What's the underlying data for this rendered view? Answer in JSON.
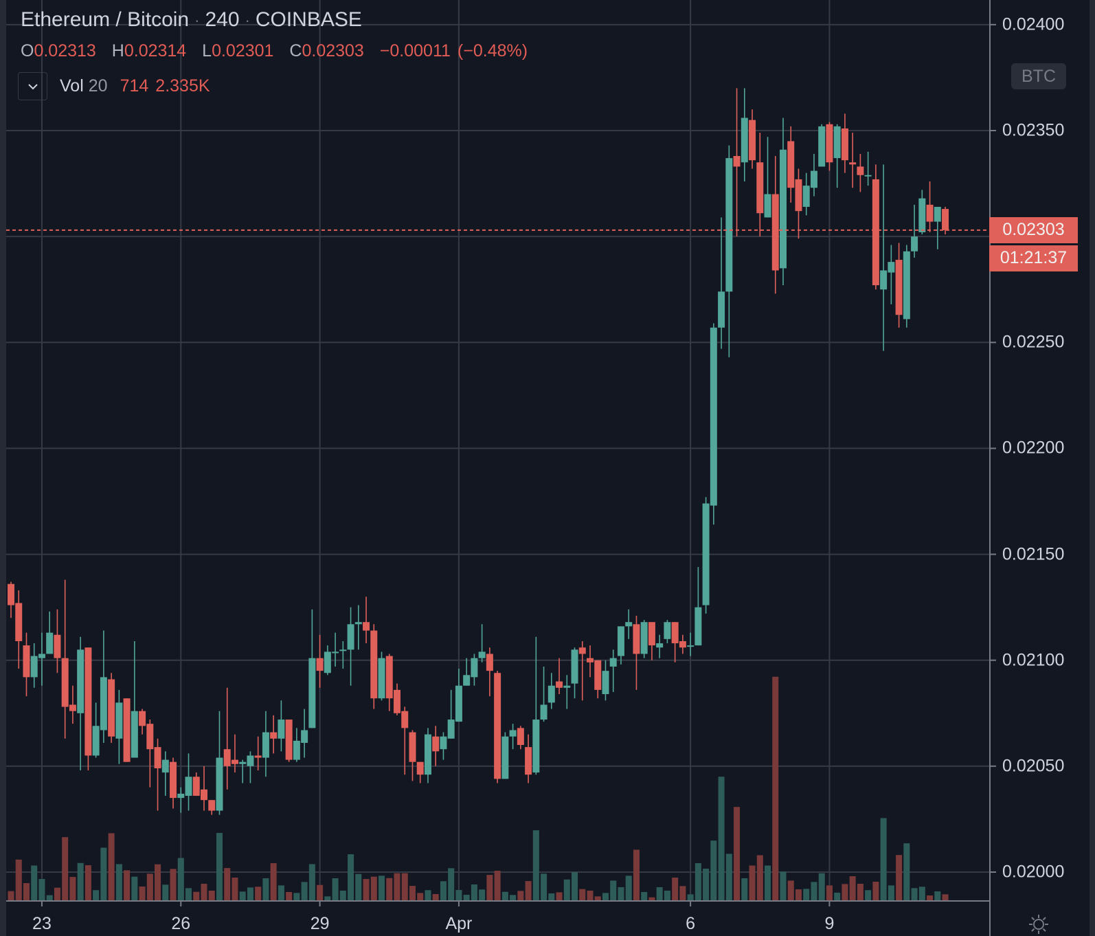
{
  "legend": {
    "symbol": "Ethereum / Bitcoin",
    "interval": "240",
    "exchange": "COINBASE",
    "separator": "·",
    "ohlc": {
      "o_key": "O",
      "o": "0.02313",
      "h_key": "H",
      "h": "0.02314",
      "l_key": "L",
      "l": "0.02301",
      "c_key": "C",
      "c": "0.02303",
      "change": "−0.00011",
      "change_pct": "(−0.48%)"
    },
    "volume": {
      "name": "Vol",
      "length": "20",
      "value": "714",
      "ma": "2.335K"
    }
  },
  "price_axis": {
    "currency_badge": "BTC",
    "current_price": "0.02303",
    "countdown": "01:21:37"
  },
  "colors": {
    "background": "#131722",
    "up": "#53a69a",
    "down": "#e0605a",
    "volume_up": "#2e5d59",
    "volume_down": "#7a3a3a",
    "grid": "#363a45",
    "axis": "#787b86"
  },
  "icons": {
    "collapse": "chevron-down-icon",
    "settings": "settings-gear-icon"
  },
  "chart_data": {
    "type": "candlestick",
    "title": "Ethereum / Bitcoin · 240 · COINBASE",
    "ylabel": "BTC",
    "ylim": [
      0.01986,
      0.02412
    ],
    "grid": true,
    "y_gridlines": [
      0.024,
      0.0235,
      0.023,
      0.0225,
      0.022,
      0.0215,
      0.021,
      0.0205,
      0.02
    ],
    "y_ticks": [
      {
        "value": 0.024,
        "label": "0.02400"
      },
      {
        "value": 0.0235,
        "label": "0.02350"
      },
      {
        "value": 0.0225,
        "label": "0.02250"
      },
      {
        "value": 0.022,
        "label": "0.02200"
      },
      {
        "value": 0.0215,
        "label": "0.02150"
      },
      {
        "value": 0.021,
        "label": "0.02100"
      },
      {
        "value": 0.0205,
        "label": "0.02050"
      },
      {
        "value": 0.02,
        "label": "0.02000"
      }
    ],
    "x_ticks": [
      {
        "index": 4,
        "label": "23"
      },
      {
        "index": 22,
        "label": "26"
      },
      {
        "index": 40,
        "label": "29"
      },
      {
        "index": 58,
        "label": "Apr"
      },
      {
        "index": 88,
        "label": "6"
      },
      {
        "index": 106,
        "label": "9"
      }
    ],
    "ohlc_columns": [
      "open",
      "high",
      "low",
      "close"
    ],
    "ohlc": [
      [
        0.02136,
        0.02137,
        0.0212,
        0.02126
      ],
      [
        0.02127,
        0.02133,
        0.02096,
        0.02109
      ],
      [
        0.02107,
        0.02113,
        0.02083,
        0.02092
      ],
      [
        0.02092,
        0.02108,
        0.02087,
        0.02102
      ],
      [
        0.02101,
        0.02113,
        0.02088,
        0.02103
      ],
      [
        0.02103,
        0.02123,
        0.02103,
        0.02113
      ],
      [
        0.02112,
        0.02124,
        0.02094,
        0.02101
      ],
      [
        0.02101,
        0.02138,
        0.02063,
        0.02078
      ],
      [
        0.02079,
        0.02088,
        0.0207,
        0.02076
      ],
      [
        0.02075,
        0.02111,
        0.02048,
        0.02105
      ],
      [
        0.02106,
        0.02106,
        0.02048,
        0.02055
      ],
      [
        0.02055,
        0.0208,
        0.02054,
        0.02069
      ],
      [
        0.02067,
        0.02114,
        0.02061,
        0.02092
      ],
      [
        0.02091,
        0.02094,
        0.02061,
        0.02064
      ],
      [
        0.02063,
        0.02086,
        0.02051,
        0.0208
      ],
      [
        0.02082,
        0.02082,
        0.02052,
        0.02052
      ],
      [
        0.02054,
        0.02109,
        0.02054,
        0.02076
      ],
      [
        0.02076,
        0.02077,
        0.02065,
        0.02069
      ],
      [
        0.0207,
        0.02072,
        0.0204,
        0.02058
      ],
      [
        0.02059,
        0.02063,
        0.02029,
        0.02049
      ],
      [
        0.02047,
        0.02057,
        0.02036,
        0.02053
      ],
      [
        0.02052,
        0.02054,
        0.0203,
        0.02035
      ],
      [
        0.02035,
        0.0204,
        0.02028,
        0.02037
      ],
      [
        0.02036,
        0.02056,
        0.02029,
        0.02045
      ],
      [
        0.02045,
        0.02047,
        0.02036,
        0.02036
      ],
      [
        0.02039,
        0.0205,
        0.02029,
        0.02034
      ],
      [
        0.02034,
        0.02034,
        0.02027,
        0.02029
      ],
      [
        0.02029,
        0.02076,
        0.02027,
        0.02054
      ],
      [
        0.02058,
        0.02087,
        0.02039,
        0.0205
      ],
      [
        0.02053,
        0.02065,
        0.02047,
        0.02051
      ],
      [
        0.02051,
        0.02053,
        0.02042,
        0.02052
      ],
      [
        0.0205,
        0.02057,
        0.02042,
        0.02055
      ],
      [
        0.02055,
        0.02064,
        0.02048,
        0.02054
      ],
      [
        0.02054,
        0.02076,
        0.02045,
        0.02066
      ],
      [
        0.02066,
        0.02074,
        0.02056,
        0.02063
      ],
      [
        0.02063,
        0.02081,
        0.02057,
        0.02072
      ],
      [
        0.02072,
        0.02072,
        0.02052,
        0.02053
      ],
      [
        0.02053,
        0.02068,
        0.02052,
        0.02062
      ],
      [
        0.02061,
        0.02077,
        0.02054,
        0.02067
      ],
      [
        0.02068,
        0.02124,
        0.02068,
        0.02101
      ],
      [
        0.02101,
        0.02112,
        0.02087,
        0.02095
      ],
      [
        0.02094,
        0.02107,
        0.02093,
        0.02104
      ],
      [
        0.02104,
        0.02113,
        0.02097,
        0.02104
      ],
      [
        0.02105,
        0.02109,
        0.02096,
        0.02105
      ],
      [
        0.02105,
        0.02125,
        0.02088,
        0.02117
      ],
      [
        0.02117,
        0.02126,
        0.02105,
        0.02118
      ],
      [
        0.02118,
        0.0213,
        0.02108,
        0.02114
      ],
      [
        0.02114,
        0.02117,
        0.02077,
        0.02082
      ],
      [
        0.02082,
        0.02104,
        0.02081,
        0.02101
      ],
      [
        0.02102,
        0.02103,
        0.02076,
        0.02082
      ],
      [
        0.02086,
        0.02089,
        0.02074,
        0.02075
      ],
      [
        0.02076,
        0.02078,
        0.02046,
        0.02068
      ],
      [
        0.02066,
        0.02067,
        0.02043,
        0.02052
      ],
      [
        0.02052,
        0.02052,
        0.02042,
        0.02046
      ],
      [
        0.02046,
        0.02068,
        0.02042,
        0.02065
      ],
      [
        0.02064,
        0.02069,
        0.0205,
        0.02057
      ],
      [
        0.02058,
        0.02066,
        0.02053,
        0.02064
      ],
      [
        0.02063,
        0.02086,
        0.02063,
        0.02072
      ],
      [
        0.02071,
        0.02096,
        0.02071,
        0.02088
      ],
      [
        0.02088,
        0.02101,
        0.02088,
        0.02093
      ],
      [
        0.02092,
        0.02103,
        0.02088,
        0.02101
      ],
      [
        0.02101,
        0.02117,
        0.02099,
        0.02104
      ],
      [
        0.02103,
        0.02106,
        0.02083,
        0.02095
      ],
      [
        0.02094,
        0.02095,
        0.02042,
        0.02044
      ],
      [
        0.02044,
        0.02066,
        0.02044,
        0.02064
      ],
      [
        0.02064,
        0.0207,
        0.02058,
        0.02067
      ],
      [
        0.02068,
        0.02069,
        0.02058,
        0.0206
      ],
      [
        0.02059,
        0.02065,
        0.02042,
        0.02046
      ],
      [
        0.02047,
        0.02111,
        0.02046,
        0.02072
      ],
      [
        0.02072,
        0.02097,
        0.02071,
        0.02079
      ],
      [
        0.0208,
        0.02094,
        0.02077,
        0.02088
      ],
      [
        0.0209,
        0.02101,
        0.02084,
        0.02087
      ],
      [
        0.02087,
        0.02093,
        0.02077,
        0.02088
      ],
      [
        0.02089,
        0.02106,
        0.02082,
        0.02105
      ],
      [
        0.02106,
        0.02109,
        0.02081,
        0.02103
      ],
      [
        0.02101,
        0.02107,
        0.02092,
        0.02099
      ],
      [
        0.021,
        0.021,
        0.02082,
        0.02086
      ],
      [
        0.02084,
        0.021,
        0.02081,
        0.02095
      ],
      [
        0.02097,
        0.02105,
        0.02085,
        0.02101
      ],
      [
        0.02102,
        0.02116,
        0.02098,
        0.02116
      ],
      [
        0.02116,
        0.02124,
        0.0211,
        0.02118
      ],
      [
        0.02117,
        0.02121,
        0.02086,
        0.02103
      ],
      [
        0.02103,
        0.02119,
        0.02101,
        0.02118
      ],
      [
        0.02118,
        0.02118,
        0.021,
        0.02107
      ],
      [
        0.02106,
        0.02112,
        0.02101,
        0.02108
      ],
      [
        0.0211,
        0.02119,
        0.02108,
        0.02118
      ],
      [
        0.02118,
        0.02118,
        0.02099,
        0.02108
      ],
      [
        0.02109,
        0.02112,
        0.02103,
        0.02106
      ],
      [
        0.02107,
        0.02113,
        0.02102,
        0.02107
      ],
      [
        0.02107,
        0.02144,
        0.02107,
        0.02125
      ],
      [
        0.02126,
        0.02177,
        0.02122,
        0.02174
      ],
      [
        0.02173,
        0.02259,
        0.02164,
        0.02257
      ],
      [
        0.02257,
        0.02309,
        0.02247,
        0.02274
      ],
      [
        0.02274,
        0.02343,
        0.02243,
        0.02337
      ],
      [
        0.02338,
        0.0237,
        0.023,
        0.02333
      ],
      [
        0.02335,
        0.0237,
        0.02326,
        0.02356
      ],
      [
        0.02355,
        0.0236,
        0.02332,
        0.02336
      ],
      [
        0.02335,
        0.02349,
        0.023,
        0.02311
      ],
      [
        0.02309,
        0.02347,
        0.02309,
        0.0232
      ],
      [
        0.0232,
        0.02338,
        0.02273,
        0.02284
      ],
      [
        0.02285,
        0.02356,
        0.02277,
        0.02341
      ],
      [
        0.02345,
        0.02352,
        0.02316,
        0.02323
      ],
      [
        0.02327,
        0.02332,
        0.02299,
        0.02312
      ],
      [
        0.02314,
        0.0233,
        0.0231,
        0.02324
      ],
      [
        0.02323,
        0.02339,
        0.02319,
        0.02331
      ],
      [
        0.02333,
        0.02353,
        0.02333,
        0.02352
      ],
      [
        0.02353,
        0.02354,
        0.02331,
        0.02335
      ],
      [
        0.02337,
        0.02353,
        0.02323,
        0.02352
      ],
      [
        0.02351,
        0.02358,
        0.0233,
        0.02336
      ],
      [
        0.02335,
        0.02349,
        0.02323,
        0.02334
      ],
      [
        0.02333,
        0.02339,
        0.02321,
        0.02329
      ],
      [
        0.02329,
        0.0234,
        0.02324,
        0.02329
      ],
      [
        0.02327,
        0.02334,
        0.02275,
        0.02277
      ],
      [
        0.02275,
        0.02334,
        0.02246,
        0.02284
      ],
      [
        0.02283,
        0.02296,
        0.02268,
        0.02288
      ],
      [
        0.02289,
        0.02297,
        0.02257,
        0.02263
      ],
      [
        0.02261,
        0.02296,
        0.02257,
        0.02293
      ],
      [
        0.02293,
        0.02315,
        0.0229,
        0.023
      ],
      [
        0.02302,
        0.02322,
        0.02301,
        0.02318
      ],
      [
        0.02315,
        0.02326,
        0.02302,
        0.02307
      ],
      [
        0.02307,
        0.02314,
        0.02294,
        0.02314
      ],
      [
        0.02313,
        0.02314,
        0.02301,
        0.02303
      ]
    ],
    "volume": [
      1060,
      4450,
      1920,
      3810,
      2360,
      620,
      1430,
      6860,
      2580,
      4080,
      3840,
      1160,
      5730,
      7280,
      3960,
      3300,
      2610,
      1550,
      2930,
      3940,
      1750,
      3440,
      4620,
      1380,
      980,
      1850,
      1110,
      7310,
      3540,
      2510,
      1010,
      1450,
      1530,
      2440,
      4060,
      1670,
      960,
      860,
      2040,
      3960,
      1720,
      490,
      2440,
      1110,
      5020,
      2900,
      2360,
      2610,
      2710,
      2460,
      2980,
      2980,
      1620,
      860,
      1160,
      740,
      2120,
      3520,
      1180,
      660,
      1770,
      1230,
      2800,
      3250,
      980,
      640,
      1080,
      2140,
      7600,
      2930,
      810,
      930,
      2310,
      3100,
      1280,
      1110,
      490,
      860,
      2190,
      1480,
      2710,
      5510,
      960,
      390,
      1480,
      1110,
      2510,
      1600,
      710,
      4060,
      3470,
      6490,
      13360,
      5070,
      10110,
      2440,
      3810,
      4920,
      3810,
      24110,
      3150,
      2190,
      1250,
      1300,
      2040,
      2980,
      1670,
      890,
      1820,
      2660,
      1850,
      1160,
      2070,
      8910,
      1670,
      4940,
      6200,
      1380,
      1530,
      590,
      1030,
      714
    ],
    "volume_ma_length": 20,
    "volume_ma_last": 2335,
    "last_price": 0.02303
  }
}
